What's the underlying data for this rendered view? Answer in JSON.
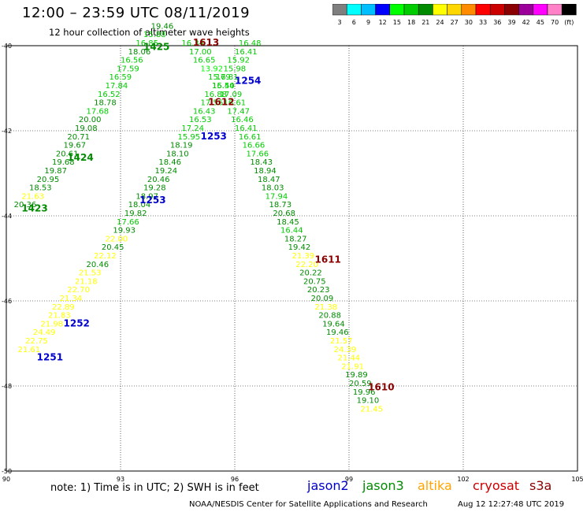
{
  "title": "12:00 – 23:59 UTC 08/11/2019",
  "subtitle": "12 hour collection of altimeter wave heights",
  "legend": {
    "colors": [
      "#7f7f7f",
      "#00ffff",
      "#00bfff",
      "#0000ff",
      "#00ff00",
      "#00cd00",
      "#008b00",
      "#ffff00",
      "#ffd700",
      "#ff8c00",
      "#ff0000",
      "#cd0000",
      "#8b0000",
      "#9b009b",
      "#ff00ff",
      "#ff82c8",
      "#000000"
    ],
    "labels": [
      "3",
      "6",
      "9",
      "12",
      "15",
      "18",
      "21",
      "24",
      "27",
      "30",
      "33",
      "36",
      "39",
      "42",
      "45",
      "70",
      "(ft)"
    ]
  },
  "map": {
    "lon_range": [
      90,
      105
    ],
    "lat_range": [
      -50,
      -40
    ],
    "lon_ticks": [
      "90",
      "93",
      "96",
      "99",
      "102",
      "105"
    ],
    "lat_ticks": [
      "-40",
      "-42",
      "-44",
      "-46",
      "-48",
      "-50"
    ],
    "grid": "dotted"
  },
  "series_colors": {
    "jason2": "#0000cd",
    "jason3": "#008b00",
    "altika": "#ffa500",
    "cryosat": "#cc0000",
    "s3a": "#8b0000"
  },
  "swh_colors": {
    "13-15": "#00ff00",
    "15-18": "#00cd00",
    "18-21": "#008b00",
    "21-24": "#ffff00"
  },
  "tracks": [
    {
      "id": "A",
      "points": [
        {
          "lon": 90.3,
          "lat": -47.2,
          "swh": "21.61"
        },
        {
          "lon": 90.5,
          "lat": -47.0,
          "swh": "22.75"
        },
        {
          "lon": 90.7,
          "lat": -46.8,
          "swh": "24.49"
        },
        {
          "lon": 90.9,
          "lat": -46.6,
          "swh": "21.98"
        },
        {
          "lon": 91.1,
          "lat": -46.4,
          "swh": "21.83"
        },
        {
          "lon": 91.2,
          "lat": -46.2,
          "swh": "22.89"
        },
        {
          "lon": 91.4,
          "lat": -46.0,
          "swh": "21.34"
        },
        {
          "lon": 91.6,
          "lat": -45.8,
          "swh": "22.70"
        },
        {
          "lon": 91.8,
          "lat": -45.6,
          "swh": "21.18"
        },
        {
          "lon": 91.9,
          "lat": -45.4,
          "swh": "21.53"
        },
        {
          "lon": 92.1,
          "lat": -45.2,
          "swh": "20.46"
        },
        {
          "lon": 92.3,
          "lat": -45.0,
          "swh": "22.12"
        },
        {
          "lon": 92.5,
          "lat": -44.8,
          "swh": "20.45"
        },
        {
          "lon": 92.6,
          "lat": -44.6,
          "swh": "22.00"
        },
        {
          "lon": 92.8,
          "lat": -44.4,
          "swh": "19.93"
        },
        {
          "lon": 92.9,
          "lat": -44.2,
          "swh": "17.66"
        },
        {
          "lon": 93.1,
          "lat": -44.0,
          "swh": "19.82"
        },
        {
          "lon": 93.2,
          "lat": -43.8,
          "swh": "18.04"
        },
        {
          "lon": 93.4,
          "lat": -43.6,
          "swh": "18.97"
        },
        {
          "lon": 93.6,
          "lat": -43.4,
          "swh": "19.28"
        },
        {
          "lon": 93.7,
          "lat": -43.2,
          "swh": "20.46"
        },
        {
          "lon": 93.9,
          "lat": -43.0,
          "swh": "19.24"
        },
        {
          "lon": 94.0,
          "lat": -42.8,
          "swh": "18.46"
        },
        {
          "lon": 94.2,
          "lat": -42.6,
          "swh": "18.10"
        },
        {
          "lon": 94.3,
          "lat": -42.4,
          "swh": "18.19"
        },
        {
          "lon": 94.5,
          "lat": -42.2,
          "swh": "15.95"
        },
        {
          "lon": 94.6,
          "lat": -42.0,
          "swh": "17.24"
        },
        {
          "lon": 94.8,
          "lat": -41.8,
          "swh": "16.53"
        },
        {
          "lon": 94.9,
          "lat": -41.6,
          "swh": "16.43"
        },
        {
          "lon": 95.1,
          "lat": -41.4,
          "swh": "17.56"
        },
        {
          "lon": 95.2,
          "lat": -41.2,
          "swh": "16.88"
        },
        {
          "lon": 95.4,
          "lat": -41.0,
          "swh": "15.40"
        },
        {
          "lon": 95.5,
          "lat": -40.8,
          "swh": "16.81"
        },
        {
          "lon": 95.7,
          "lat": -40.6,
          "swh": "15.98"
        },
        {
          "lon": 95.8,
          "lat": -40.4,
          "swh": "15.92"
        },
        {
          "lon": 96.0,
          "lat": -40.2,
          "swh": "16.41"
        },
        {
          "lon": 96.1,
          "lat": -40.0,
          "swh": "16.48"
        }
      ]
    },
    {
      "id": "B",
      "points": [
        {
          "lon": 90.2,
          "lat": -43.8,
          "swh": "20.36"
        },
        {
          "lon": 90.4,
          "lat": -43.6,
          "swh": "21.63"
        },
        {
          "lon": 90.6,
          "lat": -43.4,
          "swh": "18.53"
        },
        {
          "lon": 90.8,
          "lat": -43.2,
          "swh": "20.95"
        },
        {
          "lon": 91.0,
          "lat": -43.0,
          "swh": "19.87"
        },
        {
          "lon": 91.2,
          "lat": -42.8,
          "swh": "19.68"
        },
        {
          "lon": 91.3,
          "lat": -42.6,
          "swh": "20.61"
        },
        {
          "lon": 91.5,
          "lat": -42.4,
          "swh": "19.67"
        },
        {
          "lon": 91.6,
          "lat": -42.2,
          "swh": "20.71"
        },
        {
          "lon": 91.8,
          "lat": -42.0,
          "swh": "19.08"
        },
        {
          "lon": 91.9,
          "lat": -41.8,
          "swh": "20.00"
        },
        {
          "lon": 92.1,
          "lat": -41.6,
          "swh": "17.68"
        },
        {
          "lon": 92.3,
          "lat": -41.4,
          "swh": "18.78"
        },
        {
          "lon": 92.4,
          "lat": -41.2,
          "swh": "16.52"
        },
        {
          "lon": 92.6,
          "lat": -41.0,
          "swh": "17.84"
        },
        {
          "lon": 92.7,
          "lat": -40.8,
          "swh": "16.59"
        },
        {
          "lon": 92.9,
          "lat": -40.6,
          "swh": "17.59"
        },
        {
          "lon": 93.0,
          "lat": -40.4,
          "swh": "16.56"
        },
        {
          "lon": 93.2,
          "lat": -40.2,
          "swh": "18.06"
        },
        {
          "lon": 93.4,
          "lat": -40.0,
          "swh": "16.85"
        },
        {
          "lon": 93.6,
          "lat": -39.8,
          "swh": "15.88"
        },
        {
          "lon": 93.8,
          "lat": -39.6,
          "swh": "19.46"
        }
      ]
    },
    {
      "id": "C",
      "points": [
        {
          "lon": 94.6,
          "lat": -40.0,
          "swh": "16.34"
        },
        {
          "lon": 94.8,
          "lat": -40.2,
          "swh": "17.00"
        },
        {
          "lon": 94.9,
          "lat": -40.4,
          "swh": "16.65"
        },
        {
          "lon": 95.1,
          "lat": -40.6,
          "swh": "13.92"
        },
        {
          "lon": 95.3,
          "lat": -40.8,
          "swh": "15.79"
        },
        {
          "lon": 95.4,
          "lat": -41.0,
          "swh": "16.54"
        },
        {
          "lon": 95.6,
          "lat": -41.2,
          "swh": "17.09"
        },
        {
          "lon": 95.7,
          "lat": -41.4,
          "swh": "16.61"
        },
        {
          "lon": 95.8,
          "lat": -41.6,
          "swh": "17.47"
        },
        {
          "lon": 95.9,
          "lat": -41.8,
          "swh": "16.46"
        },
        {
          "lon": 96.0,
          "lat": -42.0,
          "swh": "16.41"
        },
        {
          "lon": 96.1,
          "lat": -42.2,
          "swh": "16.61"
        },
        {
          "lon": 96.2,
          "lat": -42.4,
          "swh": "16.66"
        },
        {
          "lon": 96.3,
          "lat": -42.6,
          "swh": "17.66"
        },
        {
          "lon": 96.4,
          "lat": -42.8,
          "swh": "18.43"
        },
        {
          "lon": 96.5,
          "lat": -43.0,
          "swh": "18.94"
        },
        {
          "lon": 96.6,
          "lat": -43.2,
          "swh": "18.47"
        },
        {
          "lon": 96.7,
          "lat": -43.4,
          "swh": "18.03"
        },
        {
          "lon": 96.8,
          "lat": -43.6,
          "swh": "17.94"
        },
        {
          "lon": 96.9,
          "lat": -43.8,
          "swh": "18.73"
        },
        {
          "lon": 97.0,
          "lat": -44.0,
          "swh": "20.68"
        },
        {
          "lon": 97.1,
          "lat": -44.2,
          "swh": "18.45"
        },
        {
          "lon": 97.2,
          "lat": -44.4,
          "swh": "16.44"
        },
        {
          "lon": 97.3,
          "lat": -44.6,
          "swh": "18.27"
        },
        {
          "lon": 97.4,
          "lat": -44.8,
          "swh": "19.42"
        },
        {
          "lon": 97.5,
          "lat": -45.0,
          "swh": "21.39"
        },
        {
          "lon": 97.6,
          "lat": -45.2,
          "swh": "22.20"
        },
        {
          "lon": 97.7,
          "lat": -45.4,
          "swh": "20.22"
        },
        {
          "lon": 97.8,
          "lat": -45.6,
          "swh": "20.75"
        },
        {
          "lon": 97.9,
          "lat": -45.8,
          "swh": "20.23"
        },
        {
          "lon": 98.0,
          "lat": -46.0,
          "swh": "20.09"
        },
        {
          "lon": 98.1,
          "lat": -46.2,
          "swh": "21.38"
        },
        {
          "lon": 98.2,
          "lat": -46.4,
          "swh": "20.88"
        },
        {
          "lon": 98.3,
          "lat": -46.6,
          "swh": "19.64"
        },
        {
          "lon": 98.4,
          "lat": -46.8,
          "swh": "19.46"
        },
        {
          "lon": 98.5,
          "lat": -47.0,
          "swh": "21.57"
        },
        {
          "lon": 98.6,
          "lat": -47.2,
          "swh": "24.39"
        },
        {
          "lon": 98.7,
          "lat": -47.4,
          "swh": "21.44"
        },
        {
          "lon": 98.8,
          "lat": -47.6,
          "swh": "21.91"
        },
        {
          "lon": 98.9,
          "lat": -47.8,
          "swh": "19.89"
        },
        {
          "lon": 99.0,
          "lat": -48.0,
          "swh": "20.59"
        },
        {
          "lon": 99.1,
          "lat": -48.2,
          "swh": "19.96"
        },
        {
          "lon": 99.2,
          "lat": -48.4,
          "swh": "19.10"
        },
        {
          "lon": 99.3,
          "lat": -48.6,
          "swh": "21.45"
        }
      ]
    }
  ],
  "time_labels": [
    {
      "text": "1613",
      "sat": "s3a",
      "lon": 94.9,
      "lat": -40.0
    },
    {
      "text": "1425",
      "sat": "jason3",
      "lon": 93.6,
      "lat": -40.1
    },
    {
      "text": "1254",
      "sat": "jason2",
      "lon": 96.0,
      "lat": -40.9
    },
    {
      "text": "1612",
      "sat": "s3a",
      "lon": 95.3,
      "lat": -41.4
    },
    {
      "text": "1253",
      "sat": "jason2",
      "lon": 95.1,
      "lat": -42.2
    },
    {
      "text": "1424",
      "sat": "jason3",
      "lon": 91.6,
      "lat": -42.7
    },
    {
      "text": "1253",
      "sat": "jason2",
      "lon": 93.5,
      "lat": -43.7
    },
    {
      "text": "1423",
      "sat": "jason3",
      "lon": 90.4,
      "lat": -43.9
    },
    {
      "text": "1611",
      "sat": "s3a",
      "lon": 98.1,
      "lat": -45.1
    },
    {
      "text": "1252",
      "sat": "jason2",
      "lon": 91.5,
      "lat": -46.6
    },
    {
      "text": "1251",
      "sat": "jason2",
      "lon": 90.8,
      "lat": -47.4
    },
    {
      "text": "1610",
      "sat": "s3a",
      "lon": 99.5,
      "lat": -48.1
    }
  ],
  "note": "note:  1) Time is in UTC;  2) SWH is in feet",
  "satellites": [
    "jason2",
    "jason3",
    "altika",
    "cryosat",
    "s3a"
  ],
  "credit": "NOAA/NESDIS Center for Satellite Applications and Research",
  "timestamp": "Aug 12 12:27:48 UTC 2019"
}
